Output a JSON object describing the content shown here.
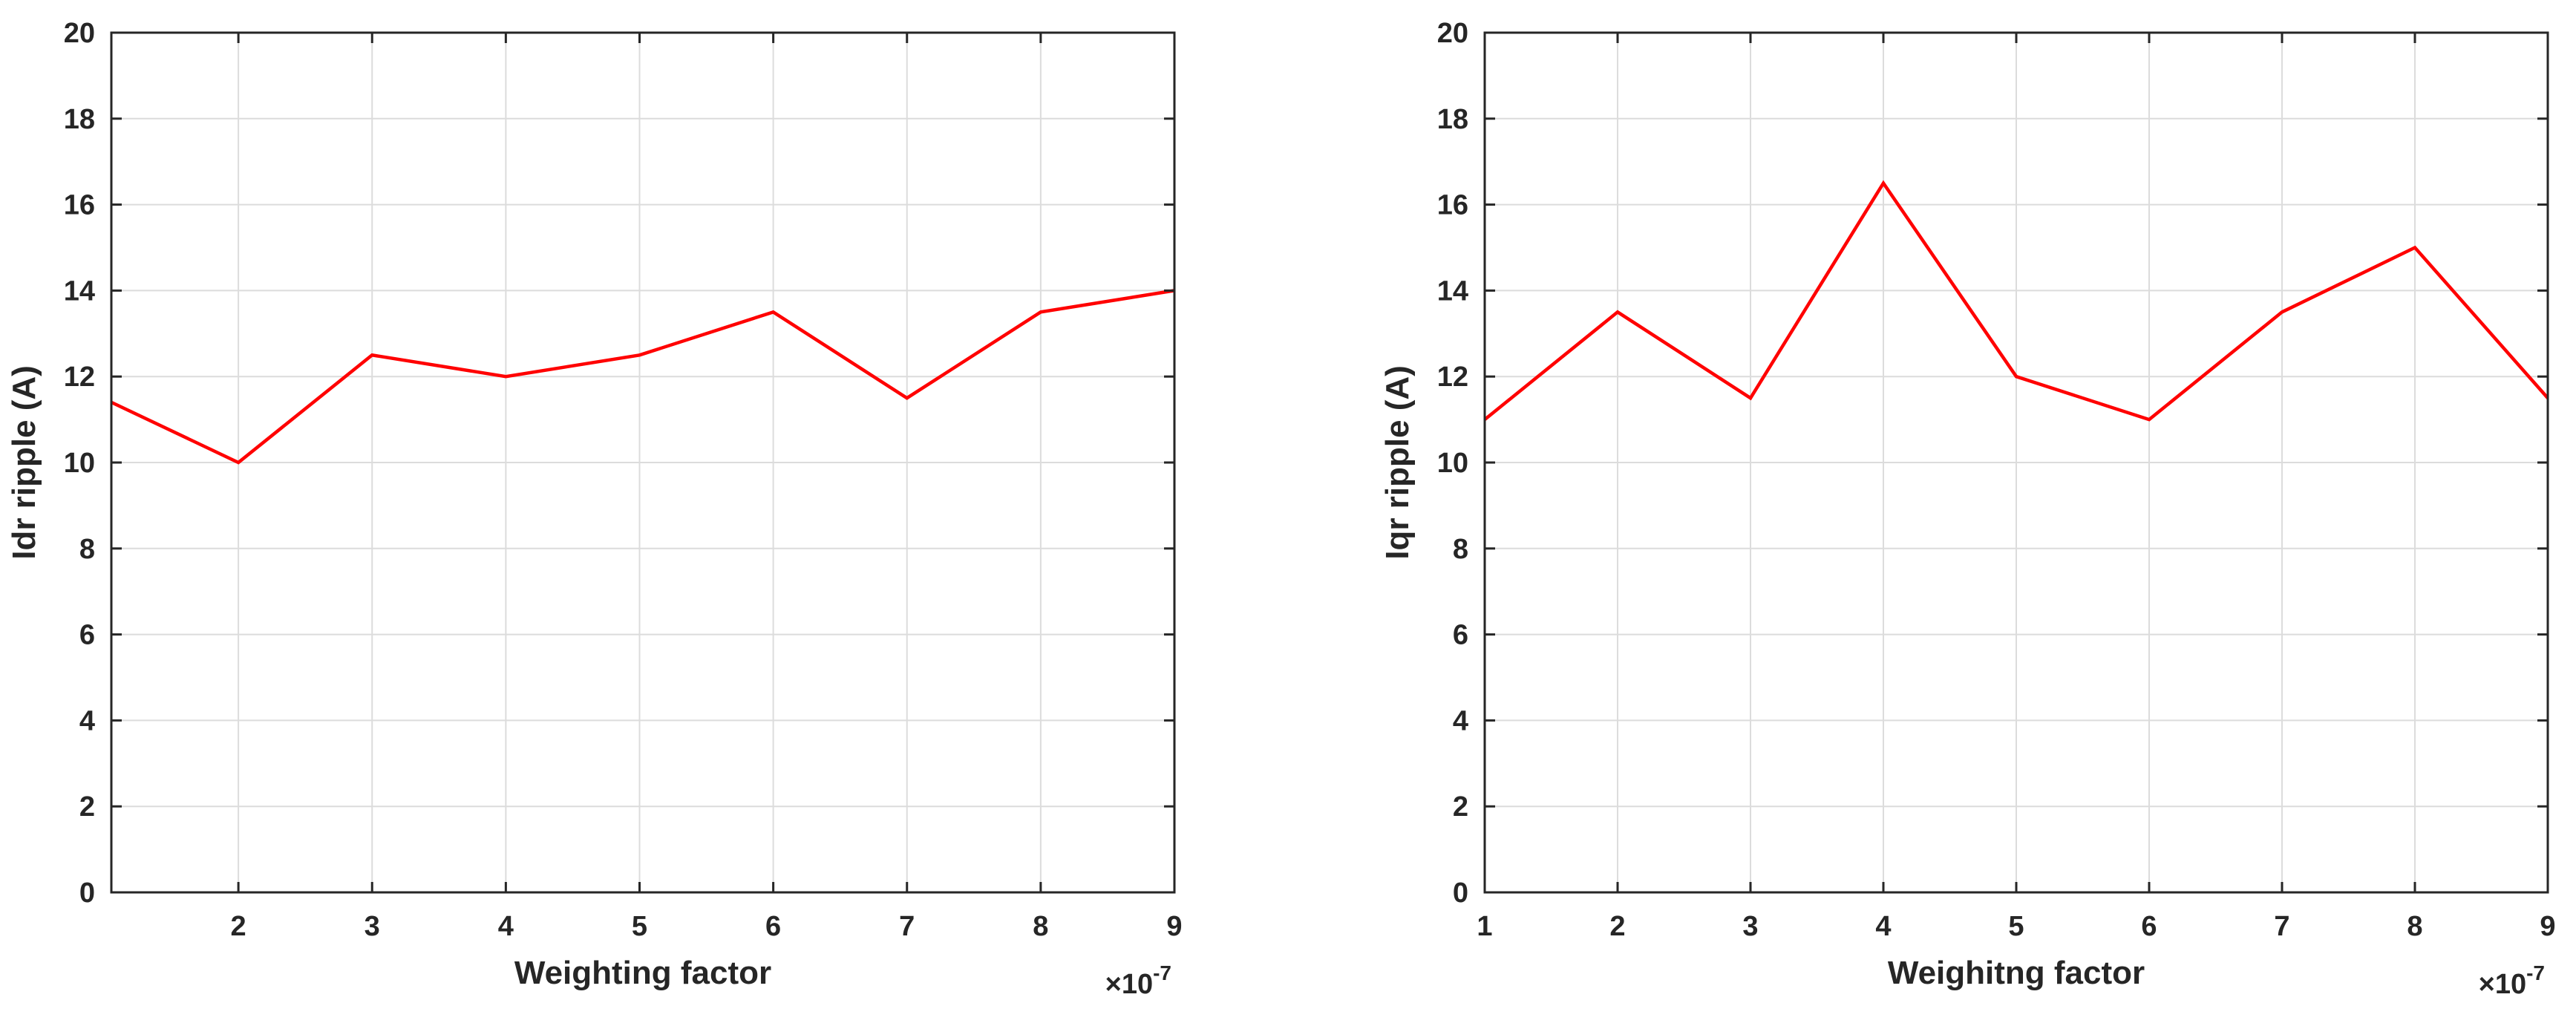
{
  "chart_data": [
    {
      "type": "line",
      "xlabel": "Weighting factor",
      "ylabel": "Idr ripple (A)",
      "exponent_label": "×10",
      "exponent_power": "-7",
      "xlim": [
        1.05,
        9.0
      ],
      "ylim": [
        0,
        20
      ],
      "xticks": [
        2,
        3,
        4,
        5,
        6,
        7,
        8,
        9
      ],
      "yticks": [
        0,
        2,
        4,
        6,
        8,
        10,
        12,
        14,
        16,
        18,
        20
      ],
      "grid": true,
      "series": [
        {
          "color": "#ff0000",
          "x": [
            1.05,
            2,
            3,
            4,
            5,
            6,
            7,
            8,
            9
          ],
          "y": [
            11.4,
            10.0,
            12.5,
            12.0,
            12.5,
            13.5,
            11.5,
            13.5,
            14.0
          ]
        }
      ]
    },
    {
      "type": "line",
      "xlabel": "Weighitng factor",
      "ylabel": "Iqr ripple (A)",
      "exponent_label": "×10",
      "exponent_power": "-7",
      "xlim": [
        1,
        9
      ],
      "ylim": [
        0,
        20
      ],
      "xticks": [
        1,
        2,
        3,
        4,
        5,
        6,
        7,
        8,
        9
      ],
      "yticks": [
        0,
        2,
        4,
        6,
        8,
        10,
        12,
        14,
        16,
        18,
        20
      ],
      "grid": true,
      "series": [
        {
          "color": "#ff0000",
          "x": [
            1,
            2,
            3,
            4,
            5,
            6,
            7,
            8,
            9
          ],
          "y": [
            11.0,
            13.5,
            11.5,
            16.5,
            12.0,
            11.0,
            13.5,
            15.0,
            11.5
          ]
        }
      ]
    }
  ]
}
